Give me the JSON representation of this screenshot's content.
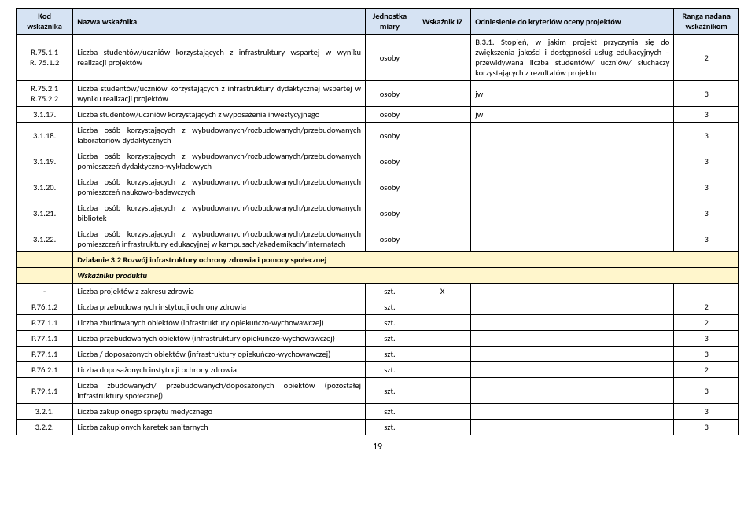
{
  "headers": {
    "kod": "Kod wskaźnika",
    "nazwa": "Nazwa wskaźnika",
    "jm": "Jednostka miary",
    "iz": "Wskaźnik IZ",
    "odn": "Odniesienie do kryteriów oceny projektów",
    "ranga": "Ranga nadana wskaźnikom"
  },
  "rows": [
    {
      "kod": "R.75.1.1\nR. 75.1.2",
      "nazwa": "Liczba studentów/uczniów korzystających z infrastruktury wspartej w wyniku realizacji projektów",
      "jm": "osoby",
      "iz": "",
      "odn": "B.3.1. Stopień, w jakim projekt przyczynia się do zwiększenia jakości i dostępności usług edukacyjnych – przewidywana liczba studentów/ uczniów/ słuchaczy korzystających z rezultatów projektu",
      "ranga": "2"
    },
    {
      "kod": "R.75.2.1\nR.75.2.2",
      "nazwa": "Liczba studentów/uczniów korzystających z infrastruktury dydaktycznej wspartej w wyniku realizacji  projektów",
      "jm": "osoby",
      "iz": "",
      "odn": "jw",
      "ranga": "3"
    },
    {
      "kod": "3.1.17.",
      "nazwa": "Liczba studentów/uczniów korzystających z wyposażenia inwestycyjnego",
      "jm": "osoby",
      "iz": "",
      "odn": "jw",
      "ranga": "3"
    },
    {
      "kod": "3.1.18.",
      "nazwa": "Liczba osób korzystających z wybudowanych/rozbudowanych/przebudowanych laboratoriów dydaktycznych",
      "jm": "osoby",
      "iz": "",
      "odn": "",
      "ranga": "3"
    },
    {
      "kod": "3.1.19.",
      "nazwa": "Liczba osób korzystających z wybudowanych/rozbudowanych/przebudowanych pomieszczeń dydaktyczno-wykładowych",
      "jm": "osoby",
      "iz": "",
      "odn": "",
      "ranga": "3"
    },
    {
      "kod": "3.1.20.",
      "nazwa": "Liczba osób korzystających z wybudowanych/rozbudowanych/przebudowanych pomieszczeń naukowo-badawczych",
      "jm": "osoby",
      "iz": "",
      "odn": "",
      "ranga": "3"
    },
    {
      "kod": "3.1.21.",
      "nazwa": "Liczba osób korzystających z wybudowanych/rozbudowanych/przebudowanych bibliotek",
      "jm": "osoby",
      "iz": "",
      "odn": "",
      "ranga": "3"
    },
    {
      "kod": "3.1.22.",
      "nazwa": "Liczba osób korzystających z wybudowanych/rozbudowanych/przebudowanych pomieszczeń infrastruktury edukacyjnej w kampusach/akademikach/internatach",
      "jm": "osoby",
      "iz": "",
      "odn": "",
      "ranga": "3"
    }
  ],
  "section1": "Działanie 3.2 Rozwój infrastruktury ochrony zdrowia i pomocy społecznej",
  "section2": "Wskaźniku produktu",
  "rows2": [
    {
      "kod": "-",
      "nazwa": "Liczba projektów z zakresu zdrowia",
      "jm": "szt.",
      "iz": "X",
      "odn": "",
      "ranga": ""
    },
    {
      "kod": "P.76.1.2",
      "nazwa": "Liczba przebudowanych instytucji ochrony zdrowia",
      "jm": "szt.",
      "iz": "",
      "odn": "",
      "ranga": "2"
    },
    {
      "kod": "P.77.1.1",
      "nazwa": "Liczba zbudowanych obiektów (infrastruktury opiekuńczo-wychowawczej)",
      "jm": "szt.",
      "iz": "",
      "odn": "",
      "ranga": "2"
    },
    {
      "kod": "P.77.1.1",
      "nazwa": "Liczba przebudowanych obiektów (infrastruktury opiekuńczo-wychowawczej)",
      "jm": "szt.",
      "iz": "",
      "odn": "",
      "ranga": "3"
    },
    {
      "kod": "P.77.1.1",
      "nazwa": "Liczba / doposażonych obiektów (infrastruktury opiekuńczo-wychowawczej)",
      "jm": "szt.",
      "iz": "",
      "odn": "",
      "ranga": "3"
    },
    {
      "kod": "P.76.2.1",
      "nazwa": "Liczba doposażonych instytucji ochrony zdrowia",
      "jm": "szt.",
      "iz": "",
      "odn": "",
      "ranga": "2"
    },
    {
      "kod": "P.79.1.1",
      "nazwa": "Liczba zbudowanych/ przebudowanych/doposażonych obiektów (pozostałej infrastruktury społecznej)",
      "jm": "szt.",
      "iz": "",
      "odn": "",
      "ranga": "3"
    },
    {
      "kod": "3.2.1.",
      "nazwa": "Liczba zakupionego sprzętu medycznego",
      "jm": "szt.",
      "iz": "",
      "odn": "",
      "ranga": "3"
    },
    {
      "kod": "3.2.2.",
      "nazwa": "Liczba zakupionych karetek sanitarnych",
      "jm": "szt.",
      "iz": "",
      "odn": "",
      "ranga": "3"
    }
  ],
  "pagenum": "19"
}
